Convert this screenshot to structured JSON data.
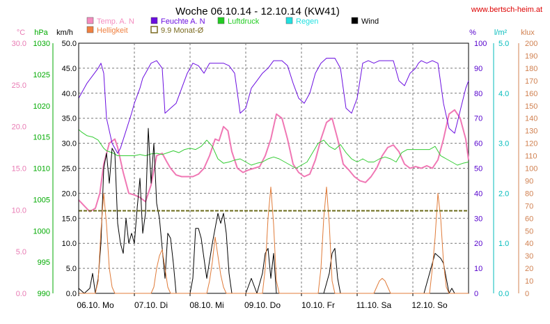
{
  "chart_data": {
    "type": "line",
    "title": "Woche 06.10.14 - 12.10.14 (KW41)",
    "website": "www.bertsch-heim.at",
    "grid": true,
    "x_ticks": [
      "06.10. Mo",
      "07.10. Di",
      "08.10. Mi",
      "09.10. Do",
      "10.10. Fr",
      "11.10. Sa",
      "12.10. So"
    ],
    "xlim": [
      0,
      7
    ],
    "axes": {
      "temp": {
        "label": "°C",
        "ylim": [
          0,
          30
        ],
        "ticks": [
          "0.0",
          "5.0",
          "10.0",
          "15.0",
          "20.0",
          "25.0",
          "30.0"
        ],
        "color": "#e87ab3"
      },
      "pressure": {
        "label": "hPa",
        "ylim": [
          990,
          1030
        ],
        "ticks": [
          "990",
          "995",
          "1000",
          "1005",
          "1010",
          "1015",
          "1020",
          "1025",
          "1030"
        ],
        "color": "#00aa00"
      },
      "wind": {
        "label": "km/h",
        "ylim": [
          0,
          50
        ],
        "ticks": [
          "0.0",
          "5.0",
          "10.0",
          "15.0",
          "20.0",
          "25.0",
          "30.0",
          "35.0",
          "40.0",
          "45.0",
          "50.0"
        ],
        "color": "#000000"
      },
      "humidity": {
        "label": "%",
        "ylim": [
          0,
          100
        ],
        "ticks": [
          "0",
          "10",
          "20",
          "30",
          "40",
          "50",
          "60",
          "70",
          "80",
          "90",
          "100"
        ],
        "color": "#5500cc"
      },
      "rain": {
        "label": "l/m²",
        "ylim": [
          0,
          5
        ],
        "ticks": [
          "0.0",
          "1.0",
          "2.0",
          "3.0",
          "4.0",
          "5.0"
        ],
        "color": "#00bbbb"
      },
      "lux": {
        "label": "klux",
        "ylim": [
          0,
          200
        ],
        "ticks": [
          "0",
          "10",
          "20",
          "30",
          "40",
          "50",
          "60",
          "70",
          "80",
          "90",
          "100",
          "110",
          "120",
          "130",
          "140",
          "150",
          "160",
          "170",
          "180",
          "190",
          "200"
        ],
        "color": "#d08050"
      }
    },
    "legend": [
      {
        "name": "Temp. A. N",
        "color": "#f48cbf",
        "style": "fill"
      },
      {
        "name": "Feuchte A. N",
        "color": "#6a0de0",
        "style": "fill"
      },
      {
        "name": "Luftdruck",
        "color": "#22cc22",
        "style": "fill"
      },
      {
        "name": "Regen",
        "color": "#22e0e0",
        "style": "fill"
      },
      {
        "name": "Wind",
        "color": "#000000",
        "style": "fill"
      },
      {
        "name": "Helligkeit",
        "color": "#f08040",
        "style": "fill"
      },
      {
        "name": "9.9 Monat-Ø",
        "color": "#7a6a20",
        "style": "outline"
      }
    ],
    "series": [
      {
        "name": "Temp. A. N",
        "axis": "temp",
        "color": "#f077b4",
        "width": 2,
        "x": [
          0,
          0.1,
          0.2,
          0.3,
          0.38,
          0.45,
          0.55,
          0.65,
          0.7,
          0.8,
          0.9,
          1.0,
          1.1,
          1.2,
          1.3,
          1.4,
          1.5,
          1.58,
          1.65,
          1.75,
          1.85,
          1.95,
          2.05,
          2.15,
          2.25,
          2.35,
          2.45,
          2.52,
          2.6,
          2.68,
          2.75,
          2.85,
          2.95,
          3.05,
          3.15,
          3.25,
          3.35,
          3.45,
          3.55,
          3.65,
          3.75,
          3.85,
          3.95,
          4.05,
          4.15,
          4.25,
          4.35,
          4.45,
          4.55,
          4.65,
          4.75,
          4.85,
          4.95,
          5.05,
          5.15,
          5.25,
          5.35,
          5.45,
          5.55,
          5.65,
          5.75,
          5.85,
          5.95,
          6.05,
          6.15,
          6.25,
          6.35,
          6.45,
          6.55,
          6.65,
          6.75,
          6.85,
          6.95,
          7.0
        ],
        "y": [
          11.2,
          10.5,
          9.8,
          10.2,
          12.0,
          15.5,
          18.0,
          18.5,
          17.5,
          14.5,
          12.0,
          11.8,
          11.5,
          11.0,
          13.0,
          16.5,
          16.8,
          15.8,
          15.0,
          14.2,
          14.0,
          14.0,
          14.0,
          14.3,
          15.0,
          16.5,
          18.5,
          18.3,
          20.0,
          19.5,
          17.0,
          15.0,
          14.5,
          14.8,
          15.0,
          15.2,
          16.5,
          18.5,
          21.5,
          21.0,
          18.5,
          15.5,
          14.5,
          14.0,
          14.3,
          16.0,
          18.5,
          20.5,
          21.0,
          18.5,
          15.5,
          14.8,
          14.0,
          13.5,
          13.3,
          14.0,
          15.0,
          16.5,
          17.5,
          17.8,
          17.0,
          15.5,
          15.0,
          15.2,
          15.0,
          15.3,
          15.0,
          16.0,
          18.5,
          21.5,
          22.0,
          21.0,
          18.5,
          16.0
        ]
      },
      {
        "name": "Luftdruck",
        "axis": "pressure",
        "color": "#33cc33",
        "width": 1,
        "x": [
          0,
          0.05,
          0.15,
          0.25,
          0.35,
          0.45,
          0.5,
          0.6,
          0.7,
          0.8,
          0.9,
          1.0,
          1.1,
          1.2,
          1.3,
          1.4,
          1.5,
          1.6,
          1.7,
          1.8,
          1.9,
          2.0,
          2.1,
          2.2,
          2.3,
          2.4,
          2.5,
          2.6,
          2.7,
          2.8,
          2.9,
          3.0,
          3.1,
          3.2,
          3.3,
          3.4,
          3.5,
          3.6,
          3.7,
          3.8,
          3.9,
          4.0,
          4.1,
          4.2,
          4.3,
          4.4,
          4.5,
          4.6,
          4.7,
          4.8,
          4.9,
          5.0,
          5.1,
          5.2,
          5.3,
          5.4,
          5.5,
          5.6,
          5.7,
          5.8,
          5.9,
          6.0,
          6.1,
          6.2,
          6.3,
          6.4,
          6.5,
          6.6,
          6.7,
          6.8,
          6.9,
          7.0
        ],
        "y": [
          1016.2,
          1015.8,
          1015.2,
          1015.0,
          1014.5,
          1013.2,
          1012.8,
          1012.5,
          1012.0,
          1012.0,
          1012.0,
          1012.0,
          1012.2,
          1012.0,
          1012.3,
          1012.4,
          1012.2,
          1012.5,
          1012.8,
          1012.5,
          1013.0,
          1013.2,
          1013.0,
          1013.5,
          1014.5,
          1013.5,
          1011.5,
          1010.8,
          1011.0,
          1011.3,
          1011.5,
          1011.0,
          1010.5,
          1010.8,
          1011.0,
          1011.5,
          1011.8,
          1011.5,
          1011.0,
          1010.5,
          1010.0,
          1010.5,
          1011.0,
          1012.5,
          1014.0,
          1014.5,
          1013.5,
          1013.0,
          1013.8,
          1012.5,
          1011.5,
          1011.0,
          1011.5,
          1011.0,
          1011.0,
          1011.5,
          1011.8,
          1011.5,
          1011.0,
          1012.5,
          1013.0,
          1013.0,
          1013.0,
          1013.0,
          1013.0,
          1013.5,
          1012.0,
          1011.5,
          1011.0,
          1010.5,
          1010.8,
          1011.0
        ]
      },
      {
        "name": "Feuchte A. N",
        "axis": "humidity",
        "color": "#6a0de0",
        "width": 1,
        "x": [
          0,
          0.05,
          0.15,
          0.25,
          0.35,
          0.4,
          0.45,
          0.5,
          0.6,
          0.7,
          0.75,
          0.85,
          0.95,
          1.0,
          1.1,
          1.15,
          1.2,
          1.3,
          1.4,
          1.5,
          1.55,
          1.65,
          1.75,
          1.85,
          1.95,
          2.05,
          2.15,
          2.25,
          2.35,
          2.45,
          2.55,
          2.6,
          2.7,
          2.8,
          2.9,
          3.0,
          3.1,
          3.2,
          3.3,
          3.4,
          3.5,
          3.55,
          3.65,
          3.75,
          3.85,
          3.95,
          4.05,
          4.15,
          4.25,
          4.35,
          4.45,
          4.5,
          4.6,
          4.7,
          4.8,
          4.9,
          5.0,
          5.1,
          5.2,
          5.3,
          5.4,
          5.45,
          5.55,
          5.65,
          5.75,
          5.85,
          5.95,
          6.05,
          6.1,
          6.15,
          6.25,
          6.35,
          6.45,
          6.55,
          6.65,
          6.75,
          6.85,
          6.95,
          7.0
        ],
        "y": [
          78,
          80,
          84,
          87,
          90,
          92,
          88,
          70,
          60,
          56,
          58,
          65,
          72,
          76,
          82,
          86,
          88,
          92,
          93,
          90,
          72,
          74,
          76,
          82,
          88,
          92,
          91,
          88,
          92,
          92,
          92,
          92,
          91,
          88,
          72,
          74,
          82,
          85,
          88,
          90,
          93,
          93,
          93,
          91,
          84,
          78,
          76,
          80,
          88,
          92,
          94,
          94,
          94,
          90,
          74,
          72,
          78,
          92,
          93,
          92,
          93,
          93,
          93,
          93,
          85,
          83,
          88,
          90,
          92,
          93,
          92,
          93,
          92,
          76,
          66,
          64,
          73,
          82,
          85
        ]
      },
      {
        "name": "Wind",
        "axis": "wind",
        "color": "#000000",
        "width": 1,
        "x": [
          0,
          0.1,
          0.2,
          0.25,
          0.3,
          0.35,
          0.4,
          0.45,
          0.5,
          0.55,
          0.6,
          0.65,
          0.7,
          0.75,
          0.8,
          0.85,
          0.9,
          0.95,
          1.0,
          1.05,
          1.1,
          1.15,
          1.2,
          1.25,
          1.3,
          1.35,
          1.4,
          1.45,
          1.5,
          1.55,
          1.6,
          1.65,
          1.7,
          1.75,
          1.8,
          1.9,
          2.0,
          2.05,
          2.1,
          2.15,
          2.2,
          2.3,
          2.4,
          2.5,
          2.55,
          2.6,
          2.65,
          2.7,
          2.75,
          2.8,
          2.85,
          2.9,
          2.95,
          3.0,
          3.1,
          3.2,
          3.3,
          3.35,
          3.4,
          3.45,
          3.5,
          3.55,
          3.6,
          3.7,
          3.8,
          4.0,
          4.2,
          4.4,
          4.5,
          4.55,
          4.6,
          4.65,
          4.7,
          4.8,
          5.0,
          5.2,
          5.3,
          5.4,
          5.5,
          6.0,
          6.2,
          6.3,
          6.4,
          6.5,
          6.55,
          6.6,
          6.65,
          6.7,
          6.75,
          6.8,
          6.85,
          6.9,
          7.0
        ],
        "y": [
          1,
          0,
          1,
          4,
          0,
          3,
          10,
          25,
          28,
          22,
          29,
          28,
          14,
          10,
          8,
          15,
          10,
          12,
          10,
          17,
          23,
          12,
          16,
          33,
          22,
          30,
          18,
          15,
          9,
          3,
          12,
          11,
          6,
          0,
          0,
          0,
          0,
          3,
          13,
          13,
          11,
          3,
          10,
          16,
          14,
          16,
          12,
          4,
          0,
          0,
          0,
          0,
          0,
          0,
          3,
          0,
          4,
          8,
          9,
          3,
          8,
          0,
          0,
          0,
          0,
          0,
          0,
          0,
          4,
          8,
          9,
          3,
          0,
          0,
          0,
          0,
          0,
          0,
          0,
          0,
          0,
          4,
          8,
          7,
          6,
          3,
          0,
          1,
          0,
          0,
          0,
          0,
          0
        ]
      },
      {
        "name": "Helligkeit",
        "axis": "lux",
        "color": "#e07b39",
        "width": 1,
        "x": [
          0,
          0.3,
          0.35,
          0.4,
          0.45,
          0.5,
          0.55,
          0.6,
          0.65,
          0.7,
          1.0,
          1.3,
          1.35,
          1.4,
          1.45,
          1.5,
          1.55,
          1.6,
          1.65,
          2.0,
          2.3,
          2.35,
          2.4,
          2.45,
          2.5,
          2.55,
          2.6,
          2.65,
          3.0,
          3.3,
          3.35,
          3.4,
          3.45,
          3.5,
          3.55,
          3.6,
          3.65,
          4.0,
          4.3,
          4.35,
          4.4,
          4.45,
          4.5,
          4.55,
          4.6,
          4.65,
          5.0,
          5.3,
          5.35,
          5.4,
          5.45,
          5.5,
          5.55,
          5.6,
          5.65,
          6.0,
          6.3,
          6.35,
          6.4,
          6.45,
          6.5,
          6.55,
          6.6,
          6.65,
          7.0
        ],
        "y": [
          0,
          0,
          10,
          50,
          80,
          55,
          20,
          5,
          0,
          0,
          0,
          0,
          5,
          20,
          30,
          35,
          20,
          5,
          0,
          0,
          0,
          10,
          25,
          45,
          30,
          15,
          5,
          0,
          0,
          0,
          20,
          60,
          85,
          55,
          10,
          0,
          0,
          0,
          0,
          20,
          60,
          85,
          55,
          10,
          0,
          0,
          0,
          0,
          5,
          10,
          12,
          10,
          5,
          0,
          0,
          0,
          0,
          20,
          45,
          80,
          60,
          25,
          5,
          0,
          0
        ]
      },
      {
        "name": "9.9 Monat-Ø",
        "axis": "temp",
        "color": "#6b6b1a",
        "width": 2,
        "dashed": true,
        "x": [
          0,
          7
        ],
        "y": [
          9.9,
          9.9
        ]
      }
    ]
  }
}
